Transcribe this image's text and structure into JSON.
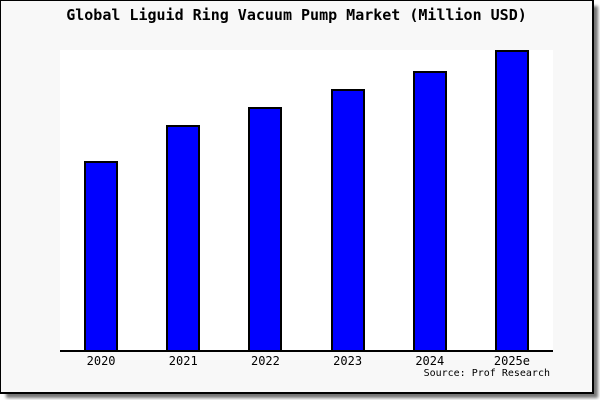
{
  "frame": {
    "background": "#f8f8f8",
    "border_color": "#000000",
    "plot_background": "#ffffff"
  },
  "chart_data": {
    "type": "bar",
    "title": "Global Liguid Ring Vacuum Pump Market (Million USD)",
    "categories": [
      "2020",
      "2021",
      "2022",
      "2023",
      "2024",
      "2025e"
    ],
    "values": [
      63,
      75,
      81,
      87,
      93,
      100
    ],
    "units": "relative height, percent of tallest bar (no y-axis scale shown in image)",
    "bar_color": "#0000ff",
    "bar_border_color": "#000000",
    "xlabel": "",
    "ylabel": "",
    "yaxis_visible": false,
    "gridlines": false,
    "legend_position": "none",
    "source_note": "Source: Prof Research"
  }
}
